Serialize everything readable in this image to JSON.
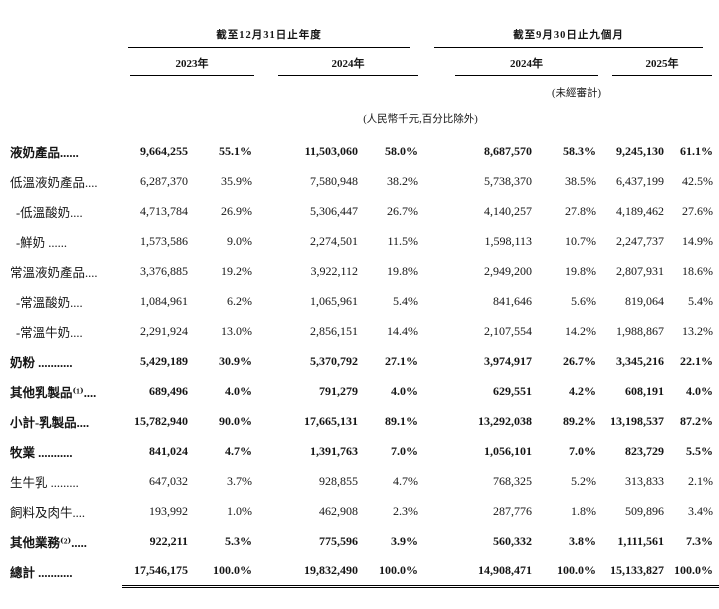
{
  "table": {
    "group_headers": [
      {
        "label": "截至12月31日止年度"
      },
      {
        "label": "截至9月30日止九個月"
      }
    ],
    "year_headers": [
      "2023年",
      "2024年",
      "2024年",
      "2025年"
    ],
    "unaudited_note": "(未經審計)",
    "currency_note": "(人民幣千元,百分比除外)",
    "rows": [
      {
        "label": "液奶產品......",
        "bold": true,
        "indent": false,
        "total": false,
        "values": [
          "9,664,255",
          "55.1%",
          "11,503,060",
          "58.0%",
          "8,687,570",
          "58.3%",
          "9,245,130",
          "61.1%"
        ]
      },
      {
        "label": "低溫液奶產品....",
        "bold": false,
        "indent": false,
        "total": false,
        "values": [
          "6,287,370",
          "35.9%",
          "7,580,948",
          "38.2%",
          "5,738,370",
          "38.5%",
          "6,437,199",
          "42.5%"
        ]
      },
      {
        "label": "-低溫酸奶....",
        "bold": false,
        "indent": true,
        "total": false,
        "values": [
          "4,713,784",
          "26.9%",
          "5,306,447",
          "26.7%",
          "4,140,257",
          "27.8%",
          "4,189,462",
          "27.6%"
        ]
      },
      {
        "label": "-鮮奶 ......",
        "bold": false,
        "indent": true,
        "total": false,
        "values": [
          "1,573,586",
          "9.0%",
          "2,274,501",
          "11.5%",
          "1,598,113",
          "10.7%",
          "2,247,737",
          "14.9%"
        ]
      },
      {
        "label": "常溫液奶產品....",
        "bold": false,
        "indent": false,
        "total": false,
        "values": [
          "3,376,885",
          "19.2%",
          "3,922,112",
          "19.8%",
          "2,949,200",
          "19.8%",
          "2,807,931",
          "18.6%"
        ]
      },
      {
        "label": "-常溫酸奶....",
        "bold": false,
        "indent": true,
        "total": false,
        "values": [
          "1,084,961",
          "6.2%",
          "1,065,961",
          "5.4%",
          "841,646",
          "5.6%",
          "819,064",
          "5.4%"
        ]
      },
      {
        "label": "-常溫牛奶....",
        "bold": false,
        "indent": true,
        "total": false,
        "values": [
          "2,291,924",
          "13.0%",
          "2,856,151",
          "14.4%",
          "2,107,554",
          "14.2%",
          "1,988,867",
          "13.2%"
        ]
      },
      {
        "label": "奶粉 ...........",
        "bold": true,
        "indent": false,
        "total": false,
        "values": [
          "5,429,189",
          "30.9%",
          "5,370,792",
          "27.1%",
          "3,974,917",
          "26.7%",
          "3,345,216",
          "22.1%"
        ]
      },
      {
        "label": "其他乳製品⁽¹⁾....",
        "bold": true,
        "indent": false,
        "total": false,
        "values": [
          "689,496",
          "4.0%",
          "791,279",
          "4.0%",
          "629,551",
          "4.2%",
          "608,191",
          "4.0%"
        ]
      },
      {
        "label": "小計-乳製品....",
        "bold": true,
        "indent": false,
        "total": false,
        "values": [
          "15,782,940",
          "90.0%",
          "17,665,131",
          "89.1%",
          "13,292,038",
          "89.2%",
          "13,198,537",
          "87.2%"
        ]
      },
      {
        "label": "牧業 ...........",
        "bold": true,
        "indent": false,
        "total": false,
        "values": [
          "841,024",
          "4.7%",
          "1,391,763",
          "7.0%",
          "1,056,101",
          "7.0%",
          "823,729",
          "5.5%"
        ]
      },
      {
        "label": "生牛乳 .........",
        "bold": false,
        "indent": false,
        "total": false,
        "values": [
          "647,032",
          "3.7%",
          "928,855",
          "4.7%",
          "768,325",
          "5.2%",
          "313,833",
          "2.1%"
        ]
      },
      {
        "label": "飼料及肉牛....",
        "bold": false,
        "indent": false,
        "total": false,
        "values": [
          "193,992",
          "1.0%",
          "462,908",
          "2.3%",
          "287,776",
          "1.8%",
          "509,896",
          "3.4%"
        ]
      },
      {
        "label": "其他業務⁽²⁾.....",
        "bold": true,
        "indent": false,
        "total": false,
        "values": [
          "922,211",
          "5.3%",
          "775,596",
          "3.9%",
          "560,332",
          "3.8%",
          "1,111,561",
          "7.3%"
        ]
      },
      {
        "label": "總計 ...........",
        "bold": true,
        "indent": false,
        "total": true,
        "values": [
          "17,546,175",
          "100.0%",
          "19,832,490",
          "100.0%",
          "14,908,471",
          "100.0%",
          "15,133,827",
          "100.0%"
        ]
      }
    ]
  }
}
